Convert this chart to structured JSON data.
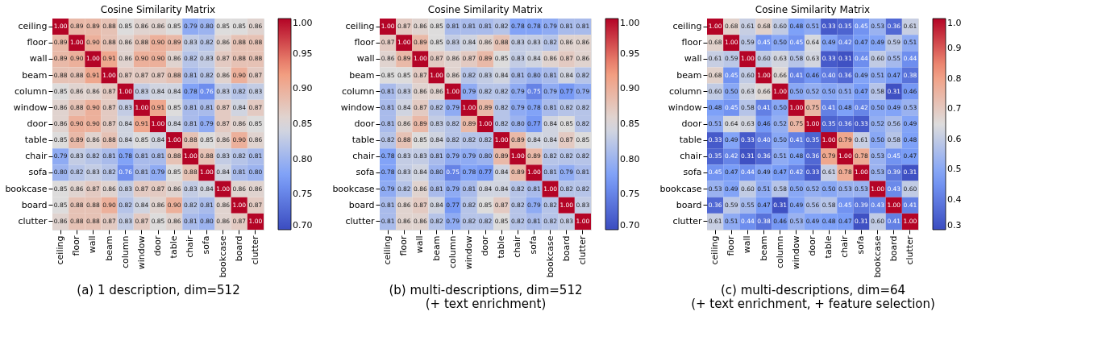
{
  "chart_data": [
    {
      "type": "heatmap",
      "title": "Cosine Similarity Matrix",
      "xlabel": "(a) 1 description, dim=512",
      "categories": [
        "ceiling",
        "floor",
        "wall",
        "beam",
        "column",
        "window",
        "door",
        "table",
        "chair",
        "sofa",
        "bookcase",
        "board",
        "clutter"
      ],
      "y_categories": [
        "ceiling",
        "floor",
        "wall",
        "beam",
        "column",
        "window",
        "door",
        "table",
        "chair",
        "sofa",
        "bookcase",
        "board",
        "clutter"
      ],
      "cells": [
        [
          1.0,
          0.89,
          0.89,
          0.88,
          0.85,
          0.86,
          0.86,
          0.85,
          0.79,
          0.8,
          0.85,
          0.85,
          0.86
        ],
        [
          0.89,
          1.0,
          0.9,
          0.88,
          0.86,
          0.88,
          0.9,
          0.89,
          0.83,
          0.82,
          0.86,
          0.88,
          0.88
        ],
        [
          0.89,
          0.9,
          1.0,
          0.91,
          0.86,
          0.9,
          0.9,
          0.86,
          0.82,
          0.83,
          0.87,
          0.88,
          0.88
        ],
        [
          0.88,
          0.88,
          0.91,
          1.0,
          0.87,
          0.87,
          0.87,
          0.88,
          0.81,
          0.82,
          0.86,
          0.9,
          0.87
        ],
        [
          0.85,
          0.86,
          0.86,
          0.87,
          1.0,
          0.83,
          0.84,
          0.84,
          0.78,
          0.76,
          0.83,
          0.82,
          0.83
        ],
        [
          0.86,
          0.88,
          0.9,
          0.87,
          0.83,
          1.0,
          0.91,
          0.85,
          0.81,
          0.81,
          0.87,
          0.84,
          0.87
        ],
        [
          0.86,
          0.9,
          0.9,
          0.87,
          0.84,
          0.91,
          1.0,
          0.84,
          0.81,
          0.79,
          0.87,
          0.86,
          0.85
        ],
        [
          0.85,
          0.89,
          0.86,
          0.88,
          0.84,
          0.85,
          0.84,
          1.0,
          0.88,
          0.85,
          0.86,
          0.9,
          0.86
        ],
        [
          0.79,
          0.83,
          0.82,
          0.81,
          0.78,
          0.81,
          0.81,
          0.88,
          1.0,
          0.88,
          0.83,
          0.82,
          0.81
        ],
        [
          0.8,
          0.82,
          0.83,
          0.82,
          0.76,
          0.81,
          0.79,
          0.85,
          0.88,
          1.0,
          0.84,
          0.81,
          0.8
        ],
        [
          0.85,
          0.86,
          0.87,
          0.86,
          0.83,
          0.87,
          0.87,
          0.86,
          0.83,
          0.84,
          1.0,
          0.86,
          0.86
        ],
        [
          0.85,
          0.88,
          0.88,
          0.9,
          0.82,
          0.84,
          0.86,
          0.9,
          0.82,
          0.81,
          0.86,
          1.0,
          0.87
        ],
        [
          0.86,
          0.88,
          0.88,
          0.87,
          0.83,
          0.87,
          0.85,
          0.86,
          0.81,
          0.8,
          0.86,
          0.87,
          1.0
        ]
      ],
      "cell_labels": [
        [
          "1.00",
          "0.89",
          "0.89",
          "0.88",
          "0.85",
          "0.86",
          "0.86",
          "0.85",
          "0.79",
          "0.80",
          "0.85",
          "0.85",
          "0.86"
        ],
        [
          "0.89",
          "1.00",
          "0.90",
          "0.88",
          "0.86",
          "0.88",
          "0.90",
          "0.89",
          "0.83",
          "0.82",
          "0.86",
          "0.88",
          "0.88"
        ],
        [
          "0.89",
          "0.90",
          "1.00",
          "0.91",
          "0.86",
          "0.90",
          "0.90",
          "0.86",
          "0.82",
          "0.83",
          "0.87",
          "0.88",
          "0.88"
        ],
        [
          "0.88",
          "0.88",
          "0.91",
          "1.00",
          "0.87",
          "0.87",
          "0.87",
          "0.88",
          "0.81",
          "0.82",
          "0.86",
          "0.90",
          "0.87"
        ],
        [
          "0.85",
          "0.86",
          "0.86",
          "0.87",
          "1.00",
          "0.83",
          "0.84",
          "0.84",
          "0.78",
          "0.76",
          "0.83",
          "0.82",
          "0.83"
        ],
        [
          "0.86",
          "0.88",
          "0.90",
          "0.87",
          "0.83",
          "1.00",
          "0.91",
          "0.85",
          "0.81",
          "0.81",
          "0.87",
          "0.84",
          "0.87"
        ],
        [
          "0.86",
          "0.90",
          "0.90",
          "0.87",
          "0.84",
          "0.91",
          "1.00",
          "0.84",
          "0.81",
          "0.79",
          "0.87",
          "0.86",
          "0.85"
        ],
        [
          "0.85",
          "0.89",
          "0.86",
          "0.88",
          "0.84",
          "0.85",
          "0.84",
          "1.00",
          "0.88",
          "0.85",
          "0.86",
          "0.90",
          "0.86"
        ],
        [
          "0.79",
          "0.83",
          "0.82",
          "0.81",
          "0.78",
          "0.81",
          "0.81",
          "0.88",
          "1.00",
          "0.88",
          "0.83",
          "0.82",
          "0.81"
        ],
        [
          "0.80",
          "0.82",
          "0.83",
          "0.82",
          "0.76",
          "0.81",
          "0.79",
          "0.85",
          "0.88",
          "1.00",
          "0.84",
          "0.81",
          "0.80"
        ],
        [
          "0.85",
          "0.86",
          "0.87",
          "0.86",
          "0.83",
          "0.87",
          "0.87",
          "0.86",
          "0.83",
          "0.84",
          "1.00",
          "0.86",
          "0.86"
        ],
        [
          "0.85",
          "0.88",
          "0.88",
          "0.90",
          "0.82",
          "0.84",
          "0.86",
          "0.90",
          "0.82",
          "0.81",
          "0.86",
          "1.00",
          "0.87"
        ],
        [
          "0.86",
          "0.88",
          "0.88",
          "0.87",
          "0.83",
          "0.87",
          "0.85",
          "0.86",
          "0.81",
          "0.80",
          "0.86",
          "0.87",
          "1.00"
        ]
      ],
      "data_labels": true,
      "clim": [
        0.7,
        1.0
      ],
      "cticks": [
        {
          "value": 0.7,
          "label": "0.70"
        },
        {
          "value": 0.75,
          "label": "0.75"
        },
        {
          "value": 0.8,
          "label": "0.80"
        },
        {
          "value": 0.85,
          "label": "0.85"
        },
        {
          "value": 0.9,
          "label": "0.90"
        },
        {
          "value": 0.95,
          "label": "0.95"
        },
        {
          "value": 1.0,
          "label": "1.00"
        }
      ]
    },
    {
      "type": "heatmap",
      "title": "Cosine Similarity Matrix",
      "xlabel": "(b) multi-descriptions, dim=512\n(+ text enrichment)",
      "categories": [
        "ceiling",
        "floor",
        "wall",
        "beam",
        "column",
        "window",
        "door",
        "table",
        "chair",
        "sofa",
        "bookcase",
        "board",
        "clutter"
      ],
      "y_categories": [
        "ceiling",
        "floor",
        "wall",
        "beam",
        "column",
        "window",
        "door",
        "table",
        "chair",
        "sofa",
        "bookcase",
        "board",
        "clutter"
      ],
      "cells": [
        [
          1.0,
          0.87,
          0.86,
          0.85,
          0.81,
          0.81,
          0.81,
          0.82,
          0.78,
          0.78,
          0.79,
          0.81,
          0.81
        ],
        [
          0.87,
          1.0,
          0.89,
          0.85,
          0.83,
          0.84,
          0.86,
          0.88,
          0.83,
          0.83,
          0.82,
          0.86,
          0.86
        ],
        [
          0.86,
          0.89,
          1.0,
          0.87,
          0.86,
          0.87,
          0.89,
          0.85,
          0.83,
          0.84,
          0.86,
          0.87,
          0.86
        ],
        [
          0.85,
          0.85,
          0.87,
          1.0,
          0.86,
          0.82,
          0.83,
          0.84,
          0.81,
          0.8,
          0.81,
          0.84,
          0.82
        ],
        [
          0.81,
          0.83,
          0.86,
          0.86,
          1.0,
          0.79,
          0.82,
          0.82,
          0.79,
          0.75,
          0.79,
          0.77,
          0.79
        ],
        [
          0.81,
          0.84,
          0.87,
          0.82,
          0.79,
          1.0,
          0.89,
          0.82,
          0.79,
          0.78,
          0.81,
          0.82,
          0.82
        ],
        [
          0.81,
          0.86,
          0.89,
          0.83,
          0.82,
          0.89,
          1.0,
          0.82,
          0.8,
          0.77,
          0.84,
          0.85,
          0.82
        ],
        [
          0.82,
          0.88,
          0.85,
          0.84,
          0.82,
          0.82,
          0.82,
          1.0,
          0.89,
          0.84,
          0.84,
          0.87,
          0.85
        ],
        [
          0.78,
          0.83,
          0.83,
          0.81,
          0.79,
          0.79,
          0.8,
          0.89,
          1.0,
          0.89,
          0.82,
          0.82,
          0.82
        ],
        [
          0.78,
          0.83,
          0.84,
          0.8,
          0.75,
          0.78,
          0.77,
          0.84,
          0.89,
          1.0,
          0.81,
          0.79,
          0.81
        ],
        [
          0.79,
          0.82,
          0.86,
          0.81,
          0.79,
          0.81,
          0.84,
          0.84,
          0.82,
          0.81,
          1.0,
          0.82,
          0.82
        ],
        [
          0.81,
          0.86,
          0.87,
          0.84,
          0.77,
          0.82,
          0.85,
          0.87,
          0.82,
          0.79,
          0.82,
          1.0,
          0.83
        ],
        [
          0.81,
          0.86,
          0.86,
          0.82,
          0.79,
          0.82,
          0.82,
          0.85,
          0.82,
          0.81,
          0.82,
          0.83,
          1.0
        ]
      ],
      "cell_labels": [
        [
          "1.00",
          "0.87",
          "0.86",
          "0.85",
          "0.81",
          "0.81",
          "0.81",
          "0.82",
          "0.78",
          "0.78",
          "0.79",
          "0.81",
          "0.81"
        ],
        [
          "0.87",
          "1.00",
          "0.89",
          "0.85",
          "0.83",
          "0.84",
          "0.86",
          "0.88",
          "0.83",
          "0.83",
          "0.82",
          "0.86",
          "0.86"
        ],
        [
          "0.86",
          "0.89",
          "1.00",
          "0.87",
          "0.86",
          "0.87",
          "0.89",
          "0.85",
          "0.83",
          "0.84",
          "0.86",
          "0.87",
          "0.86"
        ],
        [
          "0.85",
          "0.85",
          "0.87",
          "1.00",
          "0.86",
          "0.82",
          "0.83",
          "0.84",
          "0.81",
          "0.80",
          "0.81",
          "0.84",
          "0.82"
        ],
        [
          "0.81",
          "0.83",
          "0.86",
          "0.86",
          "1.00",
          "0.79",
          "0.82",
          "0.82",
          "0.79",
          "0.75",
          "0.79",
          "0.77",
          "0.79"
        ],
        [
          "0.81",
          "0.84",
          "0.87",
          "0.82",
          "0.79",
          "1.00",
          "0.89",
          "0.82",
          "0.79",
          "0.78",
          "0.81",
          "0.82",
          "0.82"
        ],
        [
          "0.81",
          "0.86",
          "0.89",
          "0.83",
          "0.82",
          "0.89",
          "1.00",
          "0.82",
          "0.80",
          "0.77",
          "0.84",
          "0.85",
          "0.82"
        ],
        [
          "0.82",
          "0.88",
          "0.85",
          "0.84",
          "0.82",
          "0.82",
          "0.82",
          "1.00",
          "0.89",
          "0.84",
          "0.84",
          "0.87",
          "0.85"
        ],
        [
          "0.78",
          "0.83",
          "0.83",
          "0.81",
          "0.79",
          "0.79",
          "0.80",
          "0.89",
          "1.00",
          "0.89",
          "0.82",
          "0.82",
          "0.82"
        ],
        [
          "0.78",
          "0.83",
          "0.84",
          "0.80",
          "0.75",
          "0.78",
          "0.77",
          "0.84",
          "0.89",
          "1.00",
          "0.81",
          "0.79",
          "0.81"
        ],
        [
          "0.79",
          "0.82",
          "0.86",
          "0.81",
          "0.79",
          "0.81",
          "0.84",
          "0.84",
          "0.82",
          "0.81",
          "1.00",
          "0.82",
          "0.82"
        ],
        [
          "0.81",
          "0.86",
          "0.87",
          "0.84",
          "0.77",
          "0.82",
          "0.85",
          "0.87",
          "0.82",
          "0.79",
          "0.82",
          "1.00",
          "0.83"
        ],
        [
          "0.81",
          "0.86",
          "0.86",
          "0.82",
          "0.79",
          "0.82",
          "0.82",
          "0.85",
          "0.82",
          "0.81",
          "0.82",
          "0.83",
          "1.00"
        ]
      ],
      "data_labels": true,
      "clim": [
        0.7,
        1.0
      ],
      "cticks": [
        {
          "value": 0.7,
          "label": "0.70"
        },
        {
          "value": 0.75,
          "label": "0.75"
        },
        {
          "value": 0.8,
          "label": "0.80"
        },
        {
          "value": 0.85,
          "label": "0.85"
        },
        {
          "value": 0.9,
          "label": "0.90"
        },
        {
          "value": 0.95,
          "label": "0.95"
        },
        {
          "value": 1.0,
          "label": "1.00"
        }
      ]
    },
    {
      "type": "heatmap",
      "title": "Cosine Similarity Matrix",
      "xlabel": "(c) multi-descriptions, dim=64\n(+ text enrichment, + feature selection)",
      "categories": [
        "ceiling",
        "floor",
        "wall",
        "beam",
        "column",
        "window",
        "door",
        "table",
        "chair",
        "sofa",
        "bookcase",
        "board",
        "clutter"
      ],
      "y_categories": [
        "ceiling",
        "floor",
        "wall",
        "beam",
        "column",
        "window",
        "door",
        "table",
        "chair",
        "sofa",
        "bookcase",
        "board",
        "clutter"
      ],
      "cells": [
        [
          1.0,
          0.68,
          0.61,
          0.68,
          0.6,
          0.48,
          0.51,
          0.33,
          0.35,
          0.45,
          0.53,
          0.36,
          0.61
        ],
        [
          0.68,
          1.0,
          0.59,
          0.45,
          0.5,
          0.45,
          0.64,
          0.49,
          0.42,
          0.47,
          0.49,
          0.59,
          0.51
        ],
        [
          0.61,
          0.59,
          1.0,
          0.6,
          0.63,
          0.58,
          0.63,
          0.33,
          0.31,
          0.44,
          0.6,
          0.55,
          0.44
        ],
        [
          0.68,
          0.45,
          0.6,
          1.0,
          0.66,
          0.41,
          0.46,
          0.4,
          0.36,
          0.49,
          0.51,
          0.47,
          0.38
        ],
        [
          0.6,
          0.5,
          0.63,
          0.66,
          1.0,
          0.5,
          0.52,
          0.5,
          0.51,
          0.47,
          0.58,
          0.31,
          0.46
        ],
        [
          0.48,
          0.45,
          0.58,
          0.41,
          0.5,
          1.0,
          0.75,
          0.41,
          0.48,
          0.42,
          0.5,
          0.49,
          0.53
        ],
        [
          0.51,
          0.64,
          0.63,
          0.46,
          0.52,
          0.75,
          1.0,
          0.35,
          0.36,
          0.33,
          0.52,
          0.56,
          0.49
        ],
        [
          0.33,
          0.49,
          0.33,
          0.4,
          0.5,
          0.41,
          0.35,
          1.0,
          0.79,
          0.61,
          0.5,
          0.58,
          0.48
        ],
        [
          0.35,
          0.42,
          0.31,
          0.36,
          0.51,
          0.48,
          0.36,
          0.79,
          1.0,
          0.78,
          0.53,
          0.45,
          0.47
        ],
        [
          0.45,
          0.47,
          0.44,
          0.49,
          0.47,
          0.42,
          0.33,
          0.61,
          0.78,
          1.0,
          0.53,
          0.39,
          0.31
        ],
        [
          0.53,
          0.49,
          0.6,
          0.51,
          0.58,
          0.5,
          0.52,
          0.5,
          0.53,
          0.53,
          1.0,
          0.43,
          0.6
        ],
        [
          0.36,
          0.59,
          0.55,
          0.47,
          0.31,
          0.49,
          0.56,
          0.58,
          0.45,
          0.39,
          0.43,
          1.0,
          0.41
        ],
        [
          0.61,
          0.51,
          0.44,
          0.38,
          0.46,
          0.53,
          0.49,
          0.48,
          0.47,
          0.31,
          0.6,
          0.41,
          1.0
        ]
      ],
      "cell_labels": [
        [
          "1.00",
          "0.68",
          "0.61",
          "0.68",
          "0.60",
          "0.48",
          "0.51",
          "0.33",
          "0.35",
          "0.45",
          "0.53",
          "0.36",
          "0.61"
        ],
        [
          "0.68",
          "1.00",
          "0.59",
          "0.45",
          "0.50",
          "0.45",
          "0.64",
          "0.49",
          "0.42",
          "0.47",
          "0.49",
          "0.59",
          "0.51"
        ],
        [
          "0.61",
          "0.59",
          "1.00",
          "0.60",
          "0.63",
          "0.58",
          "0.63",
          "0.33",
          "0.31",
          "0.44",
          "0.60",
          "0.55",
          "0.44"
        ],
        [
          "0.68",
          "0.45",
          "0.60",
          "1.00",
          "0.66",
          "0.41",
          "0.46",
          "0.40",
          "0.36",
          "0.49",
          "0.51",
          "0.47",
          "0.38"
        ],
        [
          "0.60",
          "0.50",
          "0.63",
          "0.66",
          "1.00",
          "0.50",
          "0.52",
          "0.50",
          "0.51",
          "0.47",
          "0.58",
          "0.31",
          "0.46"
        ],
        [
          "0.48",
          "0.45",
          "0.58",
          "0.41",
          "0.50",
          "1.00",
          "0.75",
          "0.41",
          "0.48",
          "0.42",
          "0.50",
          "0.49",
          "0.53"
        ],
        [
          "0.51",
          "0.64",
          "0.63",
          "0.46",
          "0.52",
          "0.75",
          "1.00",
          "0.35",
          "0.36",
          "0.33",
          "0.52",
          "0.56",
          "0.49"
        ],
        [
          "0.33",
          "0.49",
          "0.33",
          "0.40",
          "0.50",
          "0.41",
          "0.35",
          "1.00",
          "0.79",
          "0.61",
          "0.50",
          "0.58",
          "0.48"
        ],
        [
          "0.35",
          "0.42",
          "0.31",
          "0.36",
          "0.51",
          "0.48",
          "0.36",
          "0.79",
          "1.00",
          "0.78",
          "0.53",
          "0.45",
          "0.47"
        ],
        [
          "0.45",
          "0.47",
          "0.44",
          "0.49",
          "0.47",
          "0.42",
          "0.33",
          "0.61",
          "0.78",
          "1.00",
          "0.53",
          "0.39",
          "0.31"
        ],
        [
          "0.53",
          "0.49",
          "0.60",
          "0.51",
          "0.58",
          "0.50",
          "0.52",
          "0.50",
          "0.53",
          "0.53",
          "1.00",
          "0.43",
          "0.60"
        ],
        [
          "0.36",
          "0.59",
          "0.55",
          "0.47",
          "0.31",
          "0.49",
          "0.56",
          "0.58",
          "0.45",
          "0.39",
          "0.43",
          "1.00",
          "0.41"
        ],
        [
          "0.61",
          "0.51",
          "0.44",
          "0.38",
          "0.46",
          "0.53",
          "0.49",
          "0.48",
          "0.47",
          "0.31",
          "0.60",
          "0.41",
          "1.00"
        ]
      ],
      "data_labels": true,
      "clim": [
        0.3,
        1.0
      ],
      "cticks": [
        {
          "value": 0.3,
          "label": "0.3"
        },
        {
          "value": 0.4,
          "label": "0.4"
        },
        {
          "value": 0.5,
          "label": "0.5"
        },
        {
          "value": 0.6,
          "label": "0.6"
        },
        {
          "value": 0.7,
          "label": "0.7"
        },
        {
          "value": 0.8,
          "label": "0.8"
        },
        {
          "value": 0.9,
          "label": "0.9"
        },
        {
          "value": 1.0,
          "label": "1.0"
        }
      ]
    }
  ]
}
